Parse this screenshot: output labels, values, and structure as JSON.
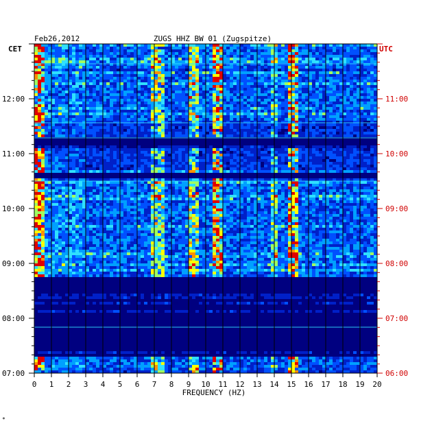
{
  "chart_data": {
    "type": "heatmap",
    "header_left": "Feb26,2012",
    "title": "ZUGS HHZ BW 01 (Zugspitze)",
    "left_axis_label": "CET",
    "right_axis_label": "UTC",
    "xlabel": "FREQUENCY (HZ)",
    "xlim": [
      0,
      20
    ],
    "x_ticks": [
      "0",
      "1",
      "2",
      "3",
      "4",
      "5",
      "6",
      "7",
      "8",
      "9",
      "10",
      "11",
      "12",
      "13",
      "14",
      "15",
      "16",
      "17",
      "18",
      "19",
      "20"
    ],
    "y_ticks_cet": [
      "12:00",
      "11:00",
      "10:00",
      "09:00",
      "08:00",
      "07:00"
    ],
    "y_ticks_utc": [
      "11:00",
      "10:00",
      "09:00",
      "08:00",
      "07:00",
      "06:00"
    ],
    "time_range_cet": [
      "07:00",
      "13:00"
    ],
    "grid": true,
    "colormap": [
      "#00007d",
      "#0020c8",
      "#0050ff",
      "#00a0ff",
      "#30e0ff",
      "#a0ff60",
      "#ffff00",
      "#ff9000",
      "#e00000"
    ],
    "colors": {
      "background": "#000080",
      "grid": "#000000",
      "left_ticks": "#000000",
      "right_ticks": "#d00000"
    },
    "footer_mark": "*"
  }
}
